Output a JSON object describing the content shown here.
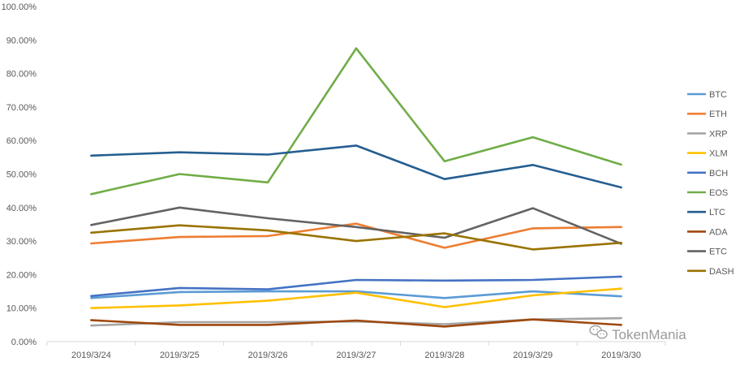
{
  "chart_data": {
    "type": "line",
    "title": "",
    "xlabel": "",
    "ylabel": "",
    "categories": [
      "2019/3/24",
      "2019/3/25",
      "2019/3/26",
      "2019/3/27",
      "2019/3/28",
      "2019/3/29",
      "2019/3/30"
    ],
    "ylim": [
      0,
      1.0
    ],
    "yticks": [
      "0.00%",
      "10.00%",
      "20.00%",
      "30.00%",
      "40.00%",
      "50.00%",
      "60.00%",
      "70.00%",
      "80.00%",
      "90.00%",
      "100.00%"
    ],
    "grid": false,
    "legend_position": "right",
    "series": [
      {
        "name": "BTC",
        "color": "#5B9BD5",
        "values": [
          0.13,
          0.148,
          0.15,
          0.15,
          0.13,
          0.15,
          0.135
        ]
      },
      {
        "name": "ETH",
        "color": "#ED7D31",
        "values": [
          0.293,
          0.312,
          0.315,
          0.352,
          0.28,
          0.338,
          0.342
        ]
      },
      {
        "name": "XRP",
        "color": "#A5A5A5",
        "values": [
          0.048,
          0.058,
          0.058,
          0.06,
          0.052,
          0.066,
          0.07
        ]
      },
      {
        "name": "XLM",
        "color": "#FFC000",
        "values": [
          0.1,
          0.108,
          0.122,
          0.146,
          0.103,
          0.138,
          0.158
        ]
      },
      {
        "name": "BCH",
        "color": "#4472C4",
        "values": [
          0.136,
          0.16,
          0.156,
          0.184,
          0.182,
          0.184,
          0.194
        ]
      },
      {
        "name": "EOS",
        "color": "#70AD47",
        "values": [
          0.44,
          0.5,
          0.475,
          0.875,
          0.538,
          0.61,
          0.528
        ]
      },
      {
        "name": "LTC",
        "color": "#255E91",
        "values": [
          0.555,
          0.565,
          0.558,
          0.585,
          0.485,
          0.527,
          0.46
        ]
      },
      {
        "name": "ADA",
        "color": "#9E480E",
        "values": [
          0.064,
          0.05,
          0.05,
          0.063,
          0.045,
          0.066,
          0.05
        ]
      },
      {
        "name": "ETC",
        "color": "#636363",
        "values": [
          0.348,
          0.4,
          0.368,
          0.342,
          0.31,
          0.398,
          0.292
        ]
      },
      {
        "name": "DASH",
        "color": "#997300",
        "values": [
          0.325,
          0.347,
          0.332,
          0.3,
          0.323,
          0.275,
          0.295
        ]
      }
    ]
  },
  "watermark": {
    "text": "TokenMania",
    "icon": "wechat-logo-icon"
  }
}
